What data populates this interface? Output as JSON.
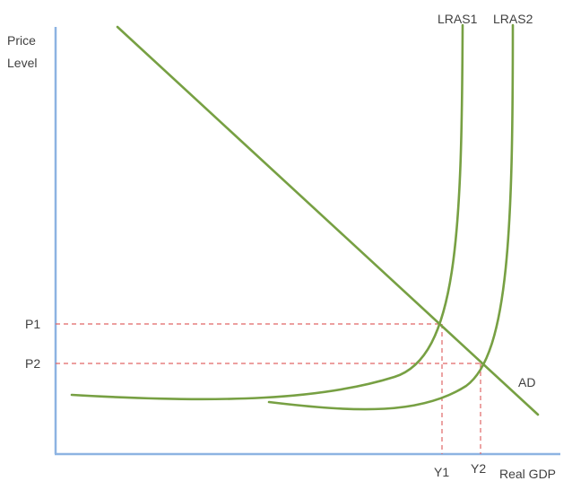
{
  "chart_data": {
    "type": "line",
    "ylabel_lines": [
      "Price",
      "Level"
    ],
    "xlabel": "Real GDP",
    "y_ticks": [
      "P1",
      "P2"
    ],
    "x_ticks": [
      "Y1",
      "Y2"
    ],
    "series": [
      {
        "name": "AD"
      },
      {
        "name": "LRAS1"
      },
      {
        "name": "LRAS2"
      }
    ],
    "grid": false,
    "legend": "none",
    "colors": {
      "curves": "#77a043",
      "axes": "#8db3e2",
      "guides": "#e06666",
      "text": "#404040"
    }
  }
}
